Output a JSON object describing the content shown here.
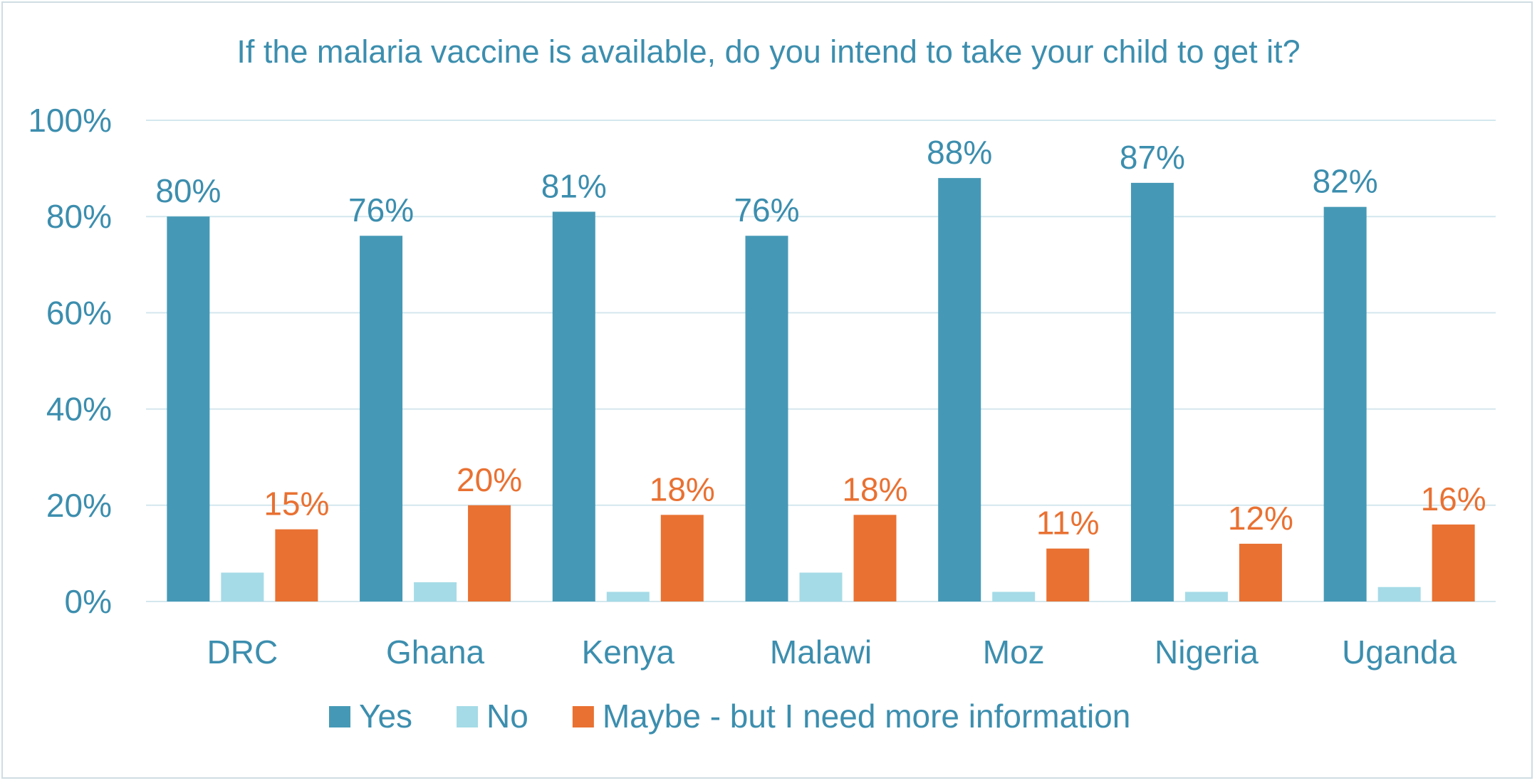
{
  "chart_data": {
    "type": "bar",
    "title": "If the malaria vaccine is available, do you intend to take your child to get it?",
    "categories": [
      "DRC",
      "Ghana",
      "Kenya",
      "Malawi",
      "Moz",
      "Nigeria",
      "Uganda"
    ],
    "series": [
      {
        "name": "Yes",
        "color": "#4599b6",
        "values": [
          80,
          76,
          81,
          76,
          88,
          87,
          82
        ],
        "labels": [
          "80%",
          "76%",
          "81%",
          "76%",
          "88%",
          "87%",
          "82%"
        ],
        "label_color": "#3c8eae"
      },
      {
        "name": "No",
        "color": "#a5dbe7",
        "values": [
          6,
          4,
          2,
          6,
          2,
          2,
          3
        ],
        "labels": [],
        "label_color": ""
      },
      {
        "name": "Maybe - but I need more information",
        "color": "#e97132",
        "values": [
          15,
          20,
          18,
          18,
          11,
          12,
          16
        ],
        "labels": [
          "15%",
          "20%",
          "18%",
          "18%",
          "11%",
          "12%",
          "16%"
        ],
        "label_color": "#e97132"
      }
    ],
    "ylim": [
      0,
      100
    ],
    "yticks": [
      0,
      20,
      40,
      60,
      80,
      100
    ],
    "ytick_labels": [
      "0%",
      "20%",
      "40%",
      "60%",
      "80%",
      "100%"
    ],
    "xlabel": "",
    "ylabel": "",
    "grid": true,
    "legend": "bottom",
    "colors": {
      "axis_text": "#3c8eae",
      "grid": "#d4e7ee"
    }
  }
}
